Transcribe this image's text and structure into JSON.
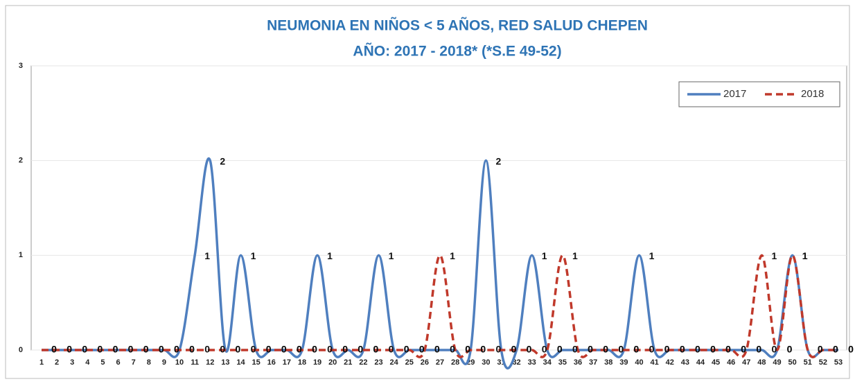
{
  "chart_data": {
    "type": "line",
    "title": "NEUMONIA EN NIÑOS < 5 AÑOS, RED SALUD CHEPEN",
    "subtitle": "AÑO: 2017 - 2018* (*S.E 49-52)",
    "categories": [
      "1",
      "2",
      "3",
      "4",
      "5",
      "6",
      "7",
      "8",
      "9",
      "10",
      "11",
      "12",
      "13",
      "14",
      "15",
      "16",
      "17",
      "18",
      "19",
      "20",
      "21",
      "22",
      "23",
      "24",
      "25",
      "26",
      "27",
      "28",
      "29",
      "30",
      "31",
      "32",
      "33",
      "34",
      "35",
      "36",
      "37",
      "38",
      "39",
      "40",
      "41",
      "42",
      "43",
      "44",
      "45",
      "46",
      "47",
      "48",
      "49",
      "50",
      "51",
      "52",
      "53"
    ],
    "series": [
      {
        "name": "2017",
        "color": "#4f7fbf",
        "dash": false,
        "values": [
          0,
          0,
          0,
          0,
          0,
          0,
          0,
          0,
          0,
          0,
          1,
          2,
          0,
          1,
          0,
          0,
          0,
          0,
          1,
          0,
          0,
          0,
          1,
          0,
          0,
          0,
          0,
          0,
          0,
          2,
          0,
          0,
          1,
          0,
          0,
          0,
          0,
          0,
          0,
          1,
          0,
          0,
          0,
          0,
          0,
          0,
          0,
          0,
          0,
          1,
          0,
          0,
          0
        ]
      },
      {
        "name": "2018",
        "color": "#c0392b",
        "dash": true,
        "values": [
          0,
          0,
          0,
          0,
          0,
          0,
          0,
          0,
          0,
          0,
          0,
          0,
          0,
          0,
          0,
          0,
          0,
          0,
          0,
          0,
          0,
          0,
          0,
          0,
          0,
          0,
          1,
          0,
          0,
          0,
          0,
          0,
          0,
          0,
          1,
          0,
          0,
          0,
          0,
          0,
          0,
          0,
          0,
          0,
          0,
          0,
          0,
          1,
          0,
          1,
          0,
          0,
          0
        ]
      }
    ],
    "ylim": [
      0,
      3
    ],
    "yticks": [
      0,
      1,
      2,
      3
    ],
    "grid": true,
    "legend": "upper right"
  }
}
